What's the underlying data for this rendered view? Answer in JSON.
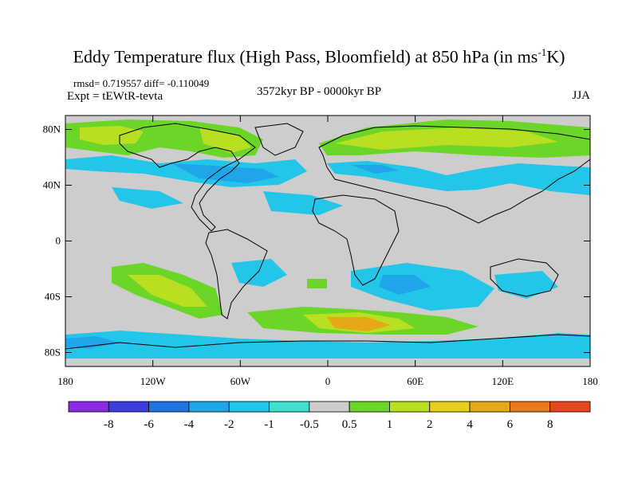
{
  "title": {
    "main": "Eddy Temperature flux (High Pass, Bloomfield) at 850 hPa (in ms",
    "sup": "-1",
    "end": "K)"
  },
  "stats": "rmsd= 0.719557 diff= -0.110049",
  "expt": "Expt = tEWtR-tevta",
  "period": "3572kyr BP - 0000kyr BP",
  "season": "JJA",
  "map": {
    "lat_range": [
      -90,
      90
    ],
    "lon_range": [
      -180,
      180
    ],
    "lat_ticks": [
      {
        "value": 80,
        "label": "80N"
      },
      {
        "value": 40,
        "label": "40N"
      },
      {
        "value": 0,
        "label": "0"
      },
      {
        "value": -40,
        "label": "40S"
      },
      {
        "value": -80,
        "label": "80S"
      }
    ],
    "lon_ticks": [
      {
        "value": -180,
        "label": "180"
      },
      {
        "value": -120,
        "label": "120W"
      },
      {
        "value": -60,
        "label": "60W"
      },
      {
        "value": 0,
        "label": "0"
      },
      {
        "value": 60,
        "label": "60E"
      },
      {
        "value": 120,
        "label": "120E"
      },
      {
        "value": 180,
        "label": "180"
      }
    ],
    "background_color": "#cdcdcd"
  },
  "colorbar": {
    "colors": [
      "#8a2be2",
      "#3c3cdc",
      "#1e74e0",
      "#1fa6ea",
      "#23c6e8",
      "#3fe0d0",
      "#cdcdcd",
      "#6cd628",
      "#b8e020",
      "#e6cf18",
      "#e6a817",
      "#e8781a",
      "#e5461c"
    ],
    "labels": [
      "-8",
      "-6",
      "-4",
      "-2",
      "-1",
      "-0.5",
      "0.5",
      "1",
      "2",
      "4",
      "6",
      "8"
    ]
  }
}
